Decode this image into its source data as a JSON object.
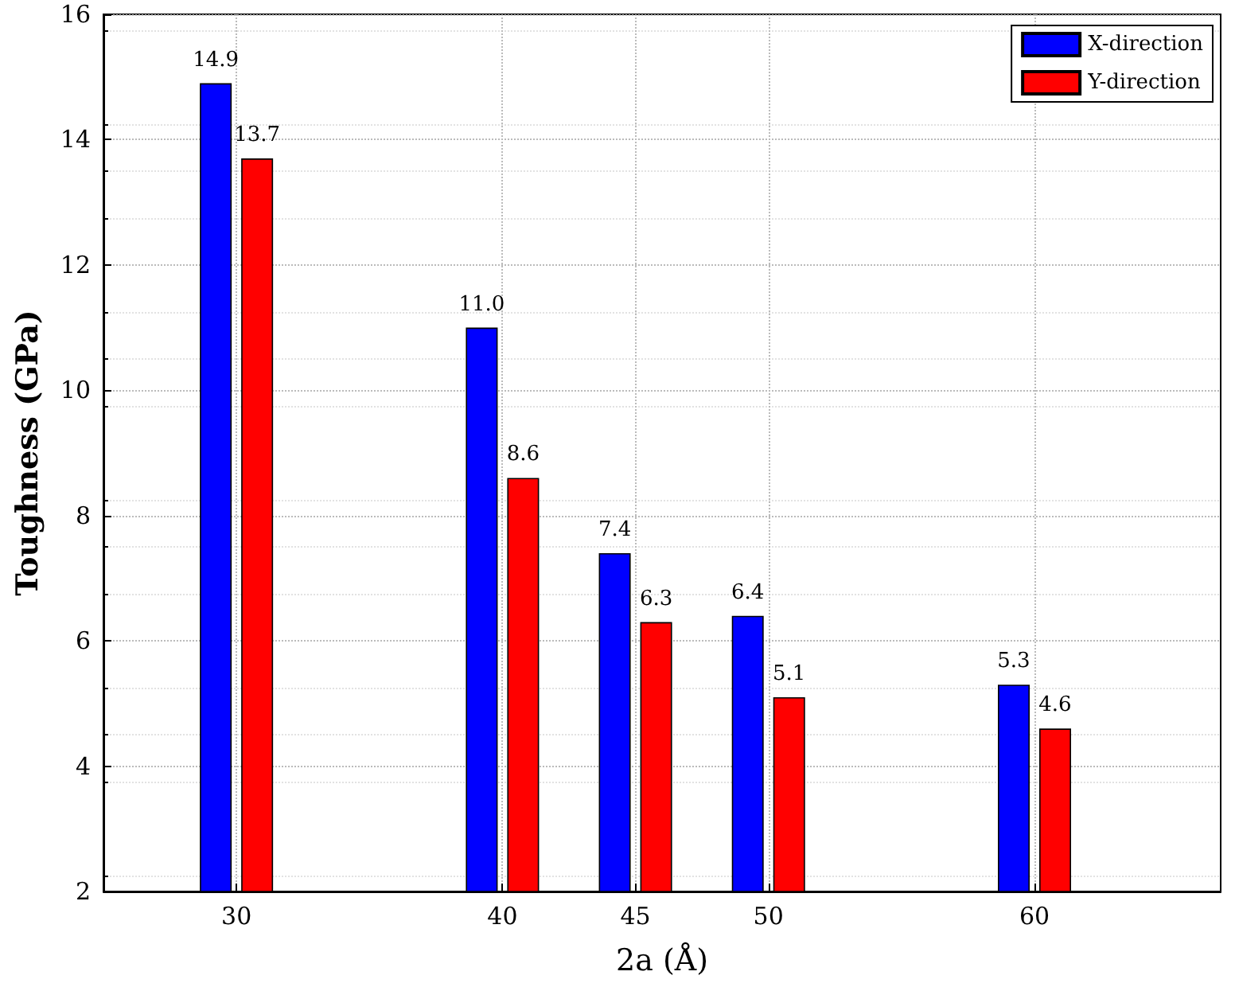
{
  "chart_data": {
    "type": "bar",
    "xlabel": "2a (Å)",
    "ylabel": "Toughness (GPa)",
    "x": [
      30,
      40,
      45,
      50,
      60
    ],
    "series": [
      {
        "name": "X-direction",
        "color": "#0000ff",
        "values": [
          14.9,
          11.0,
          7.4,
          6.4,
          5.3
        ],
        "value_labels": [
          "14.9",
          "11.0",
          "7.4",
          "6.4",
          "5.3"
        ]
      },
      {
        "name": "Y-direction",
        "color": "#ff0000",
        "values": [
          13.7,
          8.6,
          6.3,
          5.1,
          4.6
        ],
        "value_labels": [
          "13.7",
          "8.6",
          "6.3",
          "5.1",
          "4.6"
        ]
      }
    ],
    "xlim": [
      25,
      67
    ],
    "xticks": [
      30,
      40,
      45,
      50,
      60
    ],
    "ylim": [
      2,
      16
    ],
    "yticks": [
      2,
      4,
      6,
      8,
      10,
      12,
      14,
      16
    ],
    "grid": true,
    "legend": "top right"
  }
}
